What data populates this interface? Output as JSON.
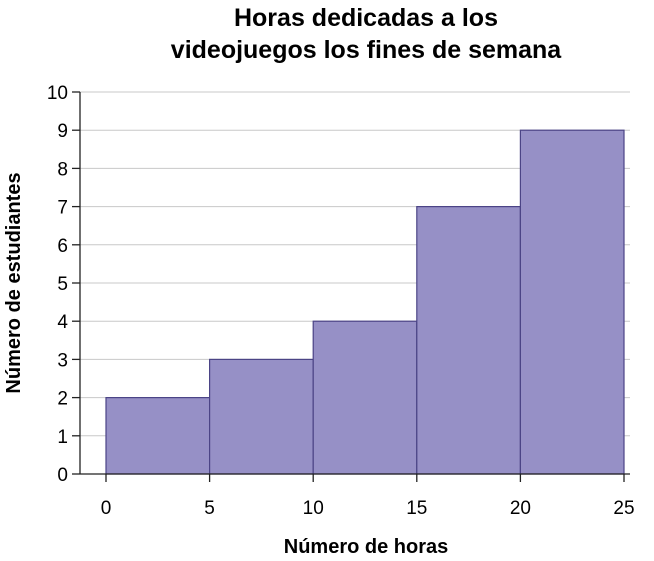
{
  "chart_data": {
    "type": "bar",
    "title_lines": [
      "Horas dedicadas a los",
      "videojuegos los fines de semana"
    ],
    "xlabel": "Número de horas",
    "ylabel": "Número de estudiantes",
    "bins": [
      {
        "start": 0,
        "end": 5,
        "value": 2
      },
      {
        "start": 5,
        "end": 10,
        "value": 3
      },
      {
        "start": 10,
        "end": 15,
        "value": 4
      },
      {
        "start": 15,
        "end": 20,
        "value": 7
      },
      {
        "start": 20,
        "end": 25,
        "value": 9
      }
    ],
    "xlim": [
      0,
      25
    ],
    "ylim": [
      0,
      10
    ],
    "x_ticks": [
      "0",
      "5",
      "10",
      "15",
      "20",
      "25"
    ],
    "y_ticks": [
      "0",
      "1",
      "2",
      "3",
      "4",
      "5",
      "6",
      "7",
      "8",
      "9",
      "10"
    ],
    "grid": true,
    "colors": {
      "bar_fill": "#9690c6",
      "bar_stroke": "#4b4486"
    }
  }
}
